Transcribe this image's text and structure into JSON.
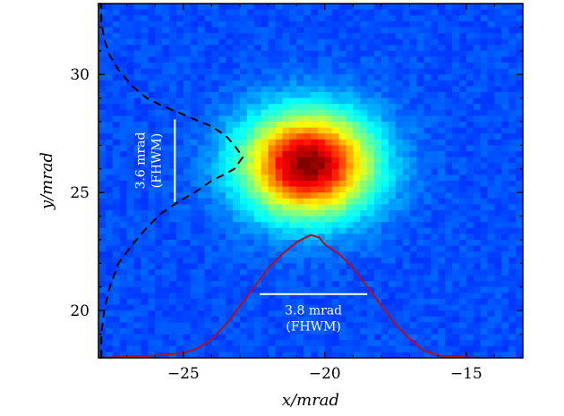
{
  "chart_data": {
    "type": "heatmap",
    "xlabel": "x/mrad",
    "ylabel": "y/mrad",
    "xlim": [
      -28,
      -13
    ],
    "ylim": [
      18,
      33
    ],
    "xticks": [
      -25,
      -20,
      -15
    ],
    "yticks": [
      20,
      25,
      30
    ],
    "xtick_labels": [
      "−25",
      "−20",
      "−15"
    ],
    "ytick_labels": [
      "20",
      "25",
      "30"
    ],
    "grid": false,
    "colormap": "jet",
    "beam": {
      "center": [
        -20.6,
        26.2
      ],
      "fwhm_x": 3.8,
      "fwhm_y": 3.6
    },
    "horizontal_profile": {
      "color": "#b01020",
      "style": "solid",
      "x": [
        -28,
        -26,
        -25,
        -24.5,
        -24,
        -23.5,
        -23,
        -22.5,
        -22,
        -21.5,
        -21,
        -20.5,
        -20.2,
        -20,
        -19.5,
        -19,
        -18.5,
        -18,
        -17.5,
        -17,
        -16.5,
        -16,
        -15,
        -14,
        -13
      ],
      "y": [
        18.0,
        18.1,
        18.2,
        18.4,
        18.8,
        19.4,
        20.2,
        21.0,
        21.8,
        22.4,
        22.9,
        23.2,
        23.1,
        22.8,
        22.4,
        21.8,
        21.0,
        20.2,
        19.4,
        18.8,
        18.3,
        18.1,
        18.02,
        18.0,
        18.0
      ]
    },
    "vertical_profile": {
      "color": "#000000",
      "style": "dashed",
      "x": [
        -27.9,
        -27.9,
        -27.8,
        -27.6,
        -27.3,
        -26.8,
        -26.3,
        -25.8,
        -25.2,
        -24.6,
        -24.0,
        -23.5,
        -23.2,
        -22.9,
        -23.2,
        -23.5,
        -24.0,
        -24.6,
        -25.2,
        -25.8,
        -26.3,
        -26.8,
        -27.3,
        -27.6,
        -27.8,
        -27.9,
        -27.9
      ],
      "y": [
        18.0,
        19.0,
        20.0,
        21.0,
        22.0,
        22.8,
        23.5,
        24.1,
        24.6,
        25.0,
        25.5,
        25.8,
        26.0,
        26.5,
        27.0,
        27.4,
        27.8,
        28.1,
        28.4,
        28.7,
        29.0,
        29.5,
        30.2,
        30.8,
        31.5,
        32.2,
        33.0
      ]
    },
    "annotations": [
      {
        "text_lines": [
          "3.6 mrad",
          "(FHWM)"
        ],
        "orientation": "vertical",
        "bar": {
          "x": -25.3,
          "y1": 24.6,
          "y2": 28.1
        }
      },
      {
        "text_lines": [
          "3.8 mrad",
          "(FHWM)"
        ],
        "orientation": "horizontal",
        "bar": {
          "y": 20.7,
          "x1": -22.3,
          "x2": -18.5
        }
      }
    ]
  }
}
